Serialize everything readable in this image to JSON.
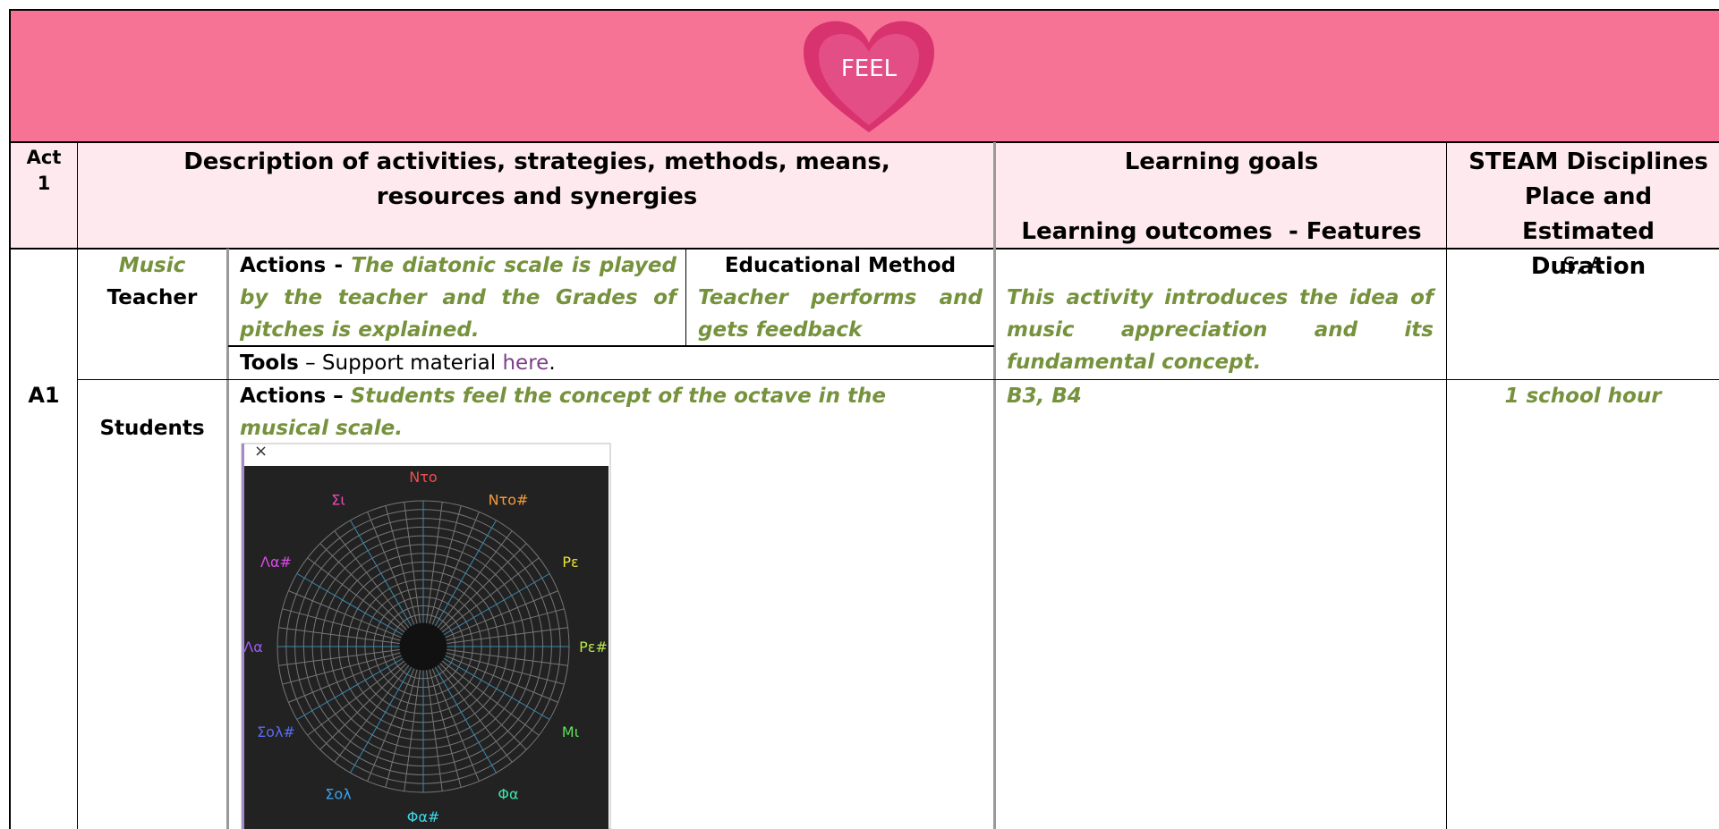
{
  "banner": {
    "title": "FEEL"
  },
  "table": {
    "header": {
      "act": "Act 1",
      "description": "Description of activities, strategies, methods, means, resources and synergies",
      "goals": "Learning goals",
      "outcomes": "Learning outcomes  - Features",
      "steam": "STEAM Disciplines Place and Estimated Duration"
    },
    "activity": "A1",
    "teacher": {
      "role_subject": "Music",
      "role": "Teacher",
      "actions_label": "Actions - ",
      "actions": "The diatonic scale is played by the teacher and the Grades of pitches is explained.",
      "method_label": "Educational Method",
      "method": "Teacher performs and gets feedback",
      "tools_label": "Tools",
      "tools_text": " – Support material ",
      "tools_link": "here",
      "tools_end": ".",
      "goal": "This activity introduces the idea of music appreciation and its fundamental concept.",
      "steam": "S, A"
    },
    "students": {
      "role": "Students",
      "actions_label": "Actions – ",
      "actions": "Students feel the concept of the octave in the musical scale.",
      "goal": "B3, B4",
      "duration": "1 school hour"
    }
  },
  "pitch_wheel": {
    "close": "×",
    "notes": [
      "Ντο",
      "Ντο#",
      "Ρε",
      "Ρε#",
      "Μι",
      "Φα",
      "Φα#",
      "Σολ",
      "Σολ#",
      "Λα",
      "Λα#",
      "Σι"
    ]
  }
}
